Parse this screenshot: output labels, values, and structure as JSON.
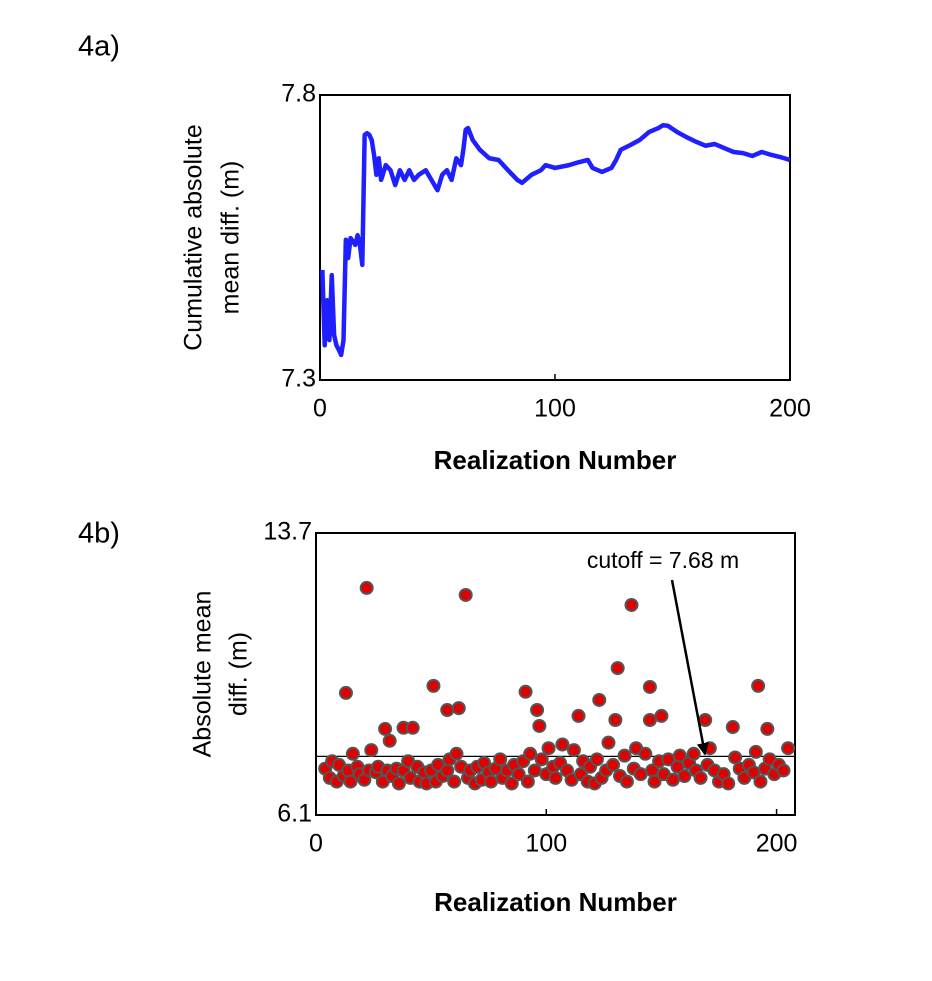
{
  "chart_data": [
    {
      "type": "line",
      "panel_label": "4a)",
      "xlabel": "Realization Number",
      "ylabel": [
        "Cumulative absolute",
        "mean diff. (m)"
      ],
      "xlim": [
        0,
        200
      ],
      "ylim": [
        7.3,
        7.8
      ],
      "xticks": [
        0,
        100,
        200
      ],
      "yticks": [
        7.3,
        7.8
      ],
      "series": [
        {
          "color": "#1f1fff",
          "x": [
            1,
            2,
            3,
            4,
            5,
            6,
            7,
            8,
            9,
            10,
            11,
            12,
            13,
            15,
            16,
            17,
            18,
            19,
            20,
            21,
            22,
            23,
            24,
            25,
            26,
            28,
            30,
            32,
            34,
            36,
            38,
            40,
            42,
            45,
            48,
            50,
            52,
            54,
            56,
            58,
            60,
            61,
            62,
            63,
            65,
            68,
            72,
            76,
            80,
            84,
            86,
            90,
            94,
            96,
            100,
            106,
            110,
            114,
            116,
            120,
            124,
            126,
            128,
            132,
            136,
            140,
            144,
            146,
            148,
            152,
            156,
            160,
            164,
            168,
            172,
            176,
            180,
            184,
            188,
            192,
            196,
            200
          ],
          "values": [
            7.493,
            7.361,
            7.44,
            7.37,
            7.484,
            7.379,
            7.361,
            7.353,
            7.344,
            7.37,
            7.546,
            7.514,
            7.549,
            7.537,
            7.554,
            7.537,
            7.502,
            7.73,
            7.733,
            7.73,
            7.721,
            7.695,
            7.66,
            7.689,
            7.651,
            7.677,
            7.668,
            7.642,
            7.668,
            7.651,
            7.668,
            7.651,
            7.66,
            7.668,
            7.647,
            7.633,
            7.66,
            7.668,
            7.651,
            7.689,
            7.677,
            7.704,
            7.739,
            7.742,
            7.721,
            7.704,
            7.689,
            7.686,
            7.668,
            7.651,
            7.646,
            7.66,
            7.668,
            7.677,
            7.672,
            7.677,
            7.682,
            7.686,
            7.672,
            7.665,
            7.672,
            7.686,
            7.704,
            7.712,
            7.721,
            7.735,
            7.742,
            7.747,
            7.746,
            7.735,
            7.726,
            7.718,
            7.711,
            7.714,
            7.707,
            7.7,
            7.698,
            7.693,
            7.7,
            7.695,
            7.691,
            7.686
          ]
        }
      ]
    },
    {
      "type": "scatter",
      "panel_label": "4b)",
      "xlabel": "Realization Number",
      "ylabel": [
        "Absolute mean",
        "diff. (m)"
      ],
      "xlim": [
        0,
        208
      ],
      "ylim": [
        6.1,
        13.7
      ],
      "xticks": [
        0,
        100,
        200
      ],
      "yticks": [
        6.1,
        13.7
      ],
      "cutoff": 7.68,
      "annotation": "cutoff = 7.68 m",
      "series": [
        {
          "color": "#e00000",
          "x": [
            22,
            65,
            137,
            131,
            13,
            51,
            91,
            145,
            192,
            57,
            62,
            96,
            123,
            114,
            130,
            145,
            150,
            30,
            38,
            42,
            181,
            196,
            169,
            97,
            4,
            6,
            7,
            9,
            10,
            12,
            14,
            15,
            16,
            18,
            19,
            21,
            23,
            24,
            26,
            27,
            29,
            31,
            32,
            33,
            35,
            36,
            38,
            40,
            41,
            44,
            45,
            47,
            48,
            50,
            52,
            53,
            55,
            57,
            58,
            60,
            61,
            63,
            66,
            67,
            69,
            70,
            72,
            73,
            75,
            76,
            78,
            80,
            81,
            83,
            85,
            86,
            88,
            90,
            92,
            93,
            95,
            98,
            100,
            101,
            103,
            104,
            106,
            107,
            109,
            111,
            112,
            115,
            116,
            118,
            119,
            121,
            122,
            124,
            126,
            127,
            129,
            132,
            134,
            135,
            138,
            139,
            141,
            143,
            146,
            147,
            149,
            151,
            153,
            155,
            157,
            158,
            160,
            162,
            164,
            165,
            167,
            170,
            171,
            173,
            175,
            177,
            179,
            182,
            184,
            186,
            188,
            190,
            191,
            193,
            195,
            197,
            199,
            201,
            203,
            205
          ],
          "values": [
            12.22,
            12.03,
            11.76,
            10.06,
            9.39,
            9.58,
            9.42,
            9.55,
            9.58,
            8.93,
            8.98,
            8.93,
            9.2,
            8.77,
            8.66,
            8.66,
            8.77,
            8.42,
            8.45,
            8.45,
            8.47,
            8.42,
            8.66,
            8.5,
            7.35,
            7.1,
            7.55,
            7.0,
            7.45,
            7.15,
            7.3,
            7.0,
            7.75,
            7.4,
            7.2,
            7.05,
            7.3,
            7.85,
            7.25,
            7.4,
            7.0,
            7.3,
            8.1,
            7.15,
            7.35,
            6.95,
            7.3,
            7.55,
            7.1,
            7.4,
            7.0,
            7.25,
            6.95,
            7.3,
            7.0,
            7.45,
            7.15,
            7.3,
            7.6,
            7.0,
            7.75,
            7.4,
            7.1,
            7.3,
            6.95,
            7.4,
            7.05,
            7.5,
            7.25,
            7.0,
            7.35,
            7.6,
            7.1,
            7.3,
            6.95,
            7.45,
            7.2,
            7.55,
            7.0,
            7.75,
            7.3,
            7.6,
            7.2,
            7.9,
            7.4,
            7.1,
            7.5,
            8.0,
            7.3,
            7.05,
            7.85,
            7.2,
            7.55,
            7.0,
            7.4,
            6.95,
            7.6,
            7.1,
            7.3,
            8.05,
            7.45,
            7.15,
            7.7,
            7.0,
            7.35,
            7.9,
            7.2,
            7.75,
            7.3,
            7.0,
            7.55,
            7.2,
            7.6,
            7.05,
            7.4,
            7.7,
            7.15,
            7.5,
            7.75,
            7.3,
            7.1,
            7.45,
            7.9,
            7.3,
            7.0,
            7.2,
            6.95,
            7.65,
            7.35,
            7.1,
            7.45,
            7.25,
            7.8,
            7.0,
            7.35,
            7.6,
            7.2,
            7.45,
            7.3,
            7.9
          ]
        }
      ]
    }
  ]
}
